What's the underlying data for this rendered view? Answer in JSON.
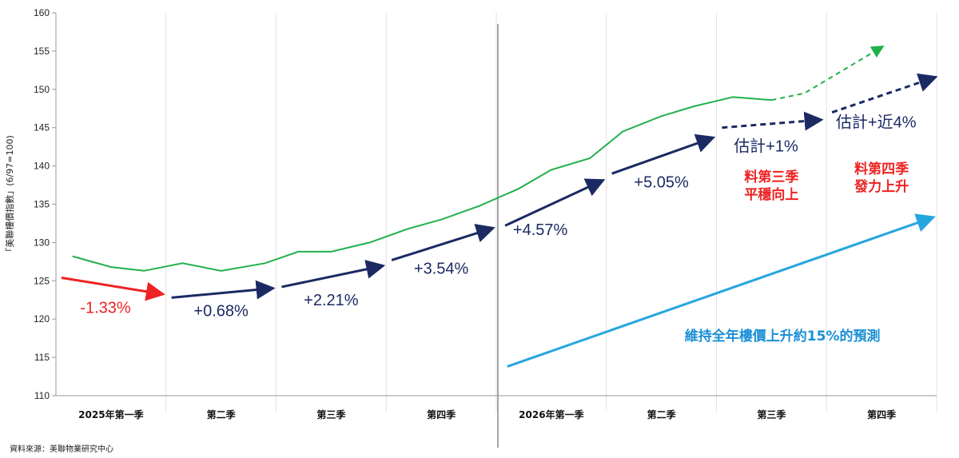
{
  "chart_data": {
    "type": "line",
    "y_axis_label": "「美聯樓價指數」(6/97=100)",
    "ylim": [
      110,
      160
    ],
    "y_ticks": [
      110,
      115,
      120,
      125,
      130,
      135,
      140,
      145,
      150,
      155,
      160
    ],
    "categories": [
      "2025年第一季",
      "第二季",
      "第三季",
      "第四季",
      "2026年第一季",
      "第二季",
      "第三季",
      "第四季"
    ],
    "grid": "vertical",
    "series": [
      {
        "style": "solid",
        "color": "#22b04b",
        "points": [
          [
            0.15,
            128.2
          ],
          [
            0.5,
            126.8
          ],
          [
            0.8,
            126.3
          ],
          [
            1.15,
            127.3
          ],
          [
            1.5,
            126.3
          ],
          [
            1.9,
            127.3
          ],
          [
            2.2,
            128.8
          ],
          [
            2.5,
            128.8
          ],
          [
            2.85,
            130.0
          ],
          [
            3.2,
            131.8
          ],
          [
            3.5,
            133.0
          ],
          [
            3.85,
            134.8
          ],
          [
            4.2,
            137.0
          ],
          [
            4.5,
            139.5
          ],
          [
            4.85,
            141.0
          ],
          [
            5.15,
            144.5
          ],
          [
            5.5,
            146.5
          ],
          [
            5.8,
            147.8
          ],
          [
            6.15,
            149.0
          ],
          [
            6.5,
            148.6
          ]
        ]
      },
      {
        "style": "dashed",
        "color": "#22b04b",
        "points": [
          [
            6.5,
            148.6
          ],
          [
            6.8,
            149.5
          ],
          [
            7.15,
            152.5
          ],
          [
            7.5,
            155.5
          ]
        ]
      }
    ],
    "arrows": [
      {
        "color": "#ee2222",
        "dashed": false,
        "from": [
          0.05,
          125.4
        ],
        "to": [
          0.95,
          123.3
        ],
        "label": "-1.33%",
        "label_pos": [
          0.45,
          120.8
        ],
        "label_color": "#ee2222"
      },
      {
        "color": "#1b2a63",
        "dashed": false,
        "from": [
          1.05,
          122.8
        ],
        "to": [
          1.95,
          124.0
        ],
        "label": "+0.68%",
        "label_pos": [
          1.5,
          120.4
        ],
        "label_color": "#1b2a63"
      },
      {
        "color": "#1b2a63",
        "dashed": false,
        "from": [
          2.05,
          124.2
        ],
        "to": [
          2.95,
          126.9
        ],
        "label": "+2.21%",
        "label_pos": [
          2.5,
          121.8
        ],
        "label_color": "#1b2a63"
      },
      {
        "color": "#1b2a63",
        "dashed": false,
        "from": [
          3.05,
          127.7
        ],
        "to": [
          3.95,
          131.8
        ],
        "label": "+3.54%",
        "label_pos": [
          3.5,
          125.9
        ],
        "label_color": "#1b2a63"
      },
      {
        "color": "#1b2a63",
        "dashed": false,
        "from": [
          4.08,
          132.2
        ],
        "to": [
          4.95,
          138.0
        ],
        "label": "+4.57%",
        "label_pos": [
          4.4,
          131.0
        ],
        "label_color": "#1b2a63"
      },
      {
        "color": "#1b2a63",
        "dashed": false,
        "from": [
          5.05,
          139.0
        ],
        "to": [
          5.95,
          143.6
        ],
        "label": "+5.05%",
        "label_pos": [
          5.5,
          137.2
        ],
        "label_color": "#1b2a63"
      },
      {
        "color": "#1b2a63",
        "dashed": true,
        "from": [
          6.05,
          145.0
        ],
        "to": [
          6.93,
          146.0
        ],
        "label": "估計+1%",
        "label_pos": [
          6.45,
          141.9
        ],
        "label_color": "#1b2a63"
      },
      {
        "color": "#1b2a63",
        "dashed": true,
        "from": [
          7.05,
          147.0
        ],
        "to": [
          7.97,
          151.5
        ],
        "label": "估計+近4%",
        "label_pos": [
          7.45,
          145.0
        ],
        "label_color": "#1b2a63"
      },
      {
        "color": "#26a6e0",
        "dashed": false,
        "from": [
          4.1,
          113.8
        ],
        "to": [
          7.95,
          133.2
        ],
        "label": "",
        "label_pos": [
          0,
          0
        ],
        "label_color": "#26a6e0"
      }
    ],
    "annotations": [
      {
        "lines": [
          "料第三季",
          "平穩向上"
        ],
        "color": "#ee2222",
        "pos": [
          6.5,
          138.0
        ]
      },
      {
        "lines": [
          "料第四季",
          "發力上升"
        ],
        "color": "#ee2222",
        "pos": [
          7.5,
          139.0
        ]
      },
      {
        "lines": [
          "維持全年樓價上升約15%的預測"
        ],
        "color": "#1a8fd6",
        "pos": [
          6.6,
          117.2
        ]
      }
    ],
    "year_divider": 4.0
  },
  "source_note": "資料來源：美聯物業研究中心"
}
